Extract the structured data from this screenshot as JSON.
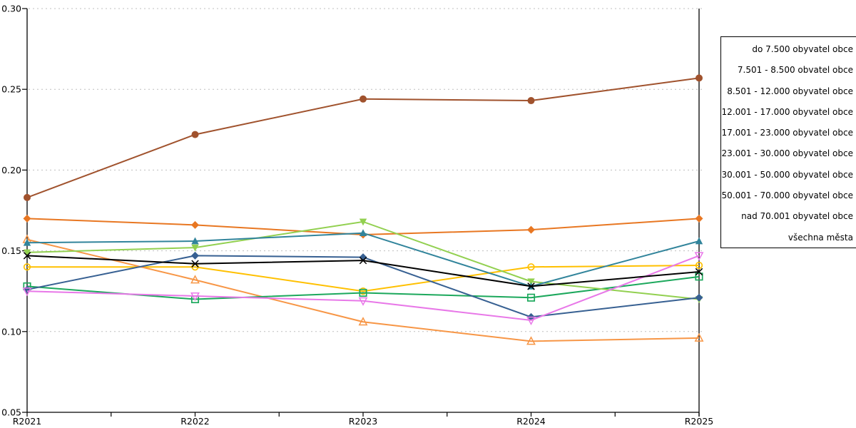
{
  "chart_data": {
    "type": "line",
    "title": "",
    "x_categories": [
      "R2021",
      "R2022",
      "R2023",
      "R2024",
      "R2025"
    ],
    "y_tick_labels": [
      "0.30",
      "0.25",
      "0.20",
      "0.15",
      "0.10",
      "0.05"
    ],
    "ylim": [
      0.05,
      0.3
    ],
    "grid": "horizontal-dashed",
    "legend_position": "right-outside",
    "series": [
      {
        "name": "do 7.500 obyvatel obce",
        "color": "#376092",
        "marker": "diamond-filled",
        "values": [
          0.126,
          0.147,
          0.146,
          0.109,
          0.121
        ]
      },
      {
        "name": "7.501 - 8.500 obvatel obce",
        "color": "#E878E8",
        "marker": "triangle-down-open",
        "values": [
          0.125,
          0.122,
          0.119,
          0.107,
          0.147
        ]
      },
      {
        "name": "8.501 - 12.000 obyvatel obce",
        "color": "#92D050",
        "marker": "triangle-down-filled",
        "values": [
          0.149,
          0.152,
          0.168,
          0.131,
          0.12
        ]
      },
      {
        "name": "12.001 - 17.000 obyvatel obce",
        "color": "#31849B",
        "marker": "triangle-up-filled",
        "values": [
          0.155,
          0.156,
          0.161,
          0.128,
          0.156
        ]
      },
      {
        "name": "17.001 - 23.000 obyvatel obce",
        "color": "#F79646",
        "marker": "triangle-up-open",
        "values": [
          0.157,
          0.132,
          0.106,
          0.094,
          0.096
        ]
      },
      {
        "name": "23.001 - 30.000 obyvatel obce",
        "color": "#1CA85C",
        "marker": "square-open",
        "values": [
          0.128,
          0.12,
          0.124,
          0.121,
          0.134
        ]
      },
      {
        "name": "30.001 - 50.000 obyvatel obce",
        "color": "#FFC000",
        "marker": "circle-open",
        "values": [
          0.14,
          0.14,
          0.125,
          0.14,
          0.141
        ]
      },
      {
        "name": "50.001 - 70.000 obyvatel obce",
        "color": "#E87722",
        "marker": "diamond-filled",
        "values": [
          0.17,
          0.166,
          0.16,
          0.163,
          0.17
        ]
      },
      {
        "name": "nad 70.001 obyvatel obce",
        "color": "#A0522D",
        "marker": "circle-filled",
        "values": [
          0.183,
          0.222,
          0.244,
          0.243,
          0.257
        ]
      },
      {
        "name": "všechna města",
        "color": "#000000",
        "marker": "x",
        "values": [
          0.147,
          0.142,
          0.144,
          0.128,
          0.137
        ]
      }
    ],
    "draw_order": [
      7,
      6,
      4,
      5,
      2,
      3,
      0,
      1,
      8,
      9
    ],
    "colors": {
      "grid": "#bfbfbf",
      "axis": "#000000",
      "background": "#ffffff"
    }
  }
}
